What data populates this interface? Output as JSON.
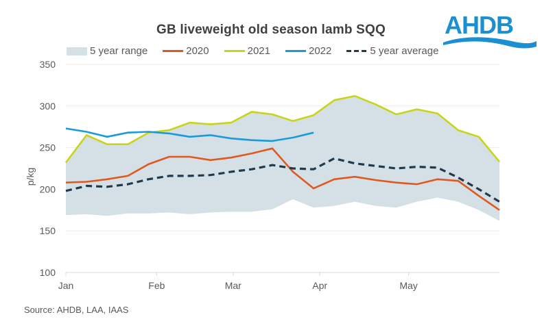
{
  "chart_data": {
    "type": "line",
    "title": "GB liveweight  old season lamb SQQ",
    "xlabel": "",
    "ylabel": "p/kg",
    "ylim": [
      100,
      350
    ],
    "yticks": [
      100,
      150,
      200,
      250,
      300,
      350
    ],
    "x": [
      0,
      1,
      2,
      3,
      4,
      5,
      6,
      7,
      8,
      9,
      10,
      11,
      12,
      13,
      14,
      15,
      16,
      17,
      18,
      19,
      20,
      21
    ],
    "xlim": [
      0,
      21
    ],
    "xticks": [
      {
        "pos": 0,
        "label": "Jan"
      },
      {
        "pos": 4.4,
        "label": "Feb"
      },
      {
        "pos": 8.1,
        "label": "Mar"
      },
      {
        "pos": 12.3,
        "label": "Apr"
      },
      {
        "pos": 16.6,
        "label": "May"
      }
    ],
    "grid": "horizontal",
    "legend_position": "top",
    "range": {
      "name": "5 year range",
      "color": "#d5dfe6",
      "min": [
        169,
        170,
        168,
        171,
        171,
        172,
        170,
        172,
        173,
        173,
        176,
        188,
        178,
        180,
        185,
        180,
        178,
        185,
        190,
        185,
        175,
        162
      ],
      "max": [
        232,
        265,
        254,
        254,
        268,
        271,
        280,
        278,
        280,
        293,
        290,
        282,
        289,
        307,
        312,
        302,
        290,
        296,
        291,
        271,
        263,
        233
      ]
    },
    "series": [
      {
        "name": "2020",
        "color": "#e0581e",
        "style": "solid",
        "values": [
          208,
          209,
          212,
          216,
          230,
          239,
          239,
          235,
          238,
          243,
          249,
          221,
          201,
          212,
          215,
          211,
          208,
          206,
          212,
          210,
          192,
          175
        ]
      },
      {
        "name": "2021",
        "color": "#c8d416",
        "style": "solid",
        "values": [
          232,
          265,
          254,
          254,
          268,
          271,
          280,
          278,
          280,
          293,
          290,
          282,
          289,
          307,
          312,
          302,
          290,
          296,
          291,
          271,
          263,
          233
        ]
      },
      {
        "name": "2022",
        "color": "#1a9ad9",
        "style": "solid",
        "values": [
          273,
          269,
          263,
          268,
          269,
          267,
          263,
          265,
          261,
          259,
          258,
          262,
          268
        ]
      },
      {
        "name": "5 year average",
        "color": "#1f3a4d",
        "style": "dashed",
        "values": [
          198,
          204,
          203,
          206,
          212,
          216,
          216,
          217,
          221,
          224,
          229,
          225,
          224,
          237,
          231,
          228,
          225,
          227,
          226,
          214,
          200,
          185
        ]
      }
    ]
  },
  "logo": {
    "text": "AHDB",
    "color": "#1a8fd1"
  },
  "source": "Source: AHDB, LAA, IAAS"
}
